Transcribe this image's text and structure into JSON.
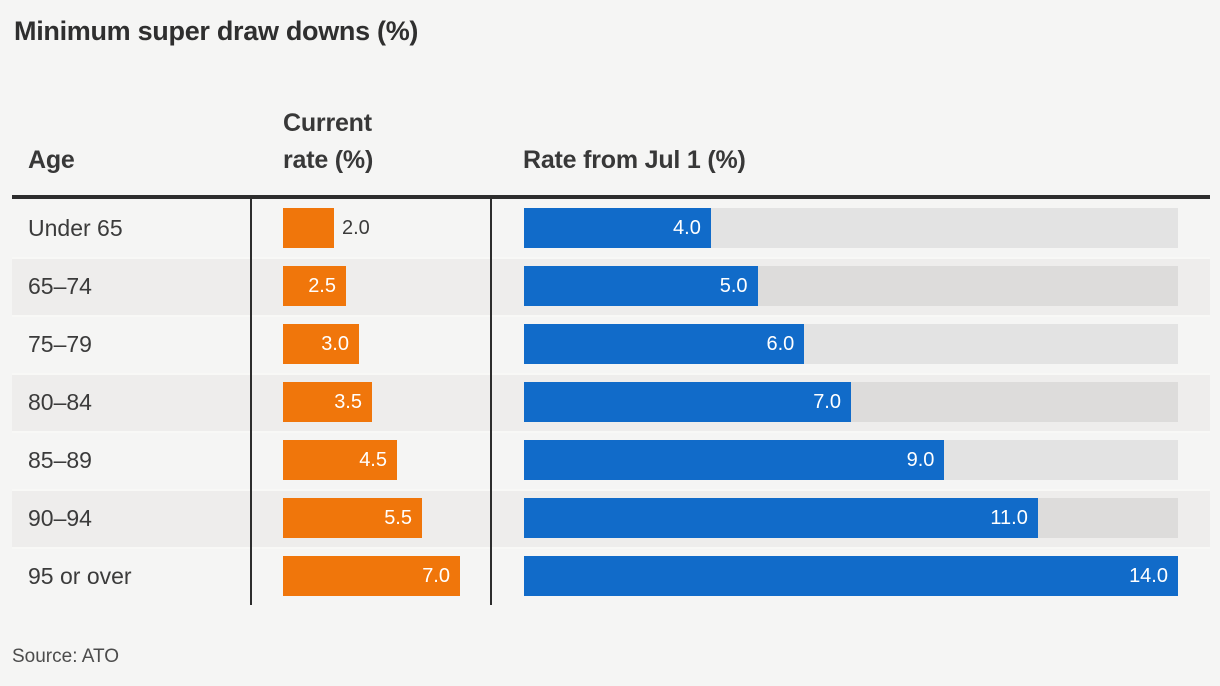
{
  "title": "Minimum super draw downs (%)",
  "columns": {
    "age": "Age",
    "current": "Current\nrate (%)",
    "july": "Rate from Jul 1 (%)"
  },
  "source_note": "Source: ATO",
  "colors": {
    "background": "#f5f5f4",
    "row_alt": "#eeedec",
    "track": "#e2e1e0",
    "current_bar": "#f0760b",
    "july_bar": "#116bc9",
    "rule": "#2d2d2d",
    "text": "#3b3b3b"
  },
  "chart_data": {
    "type": "bar",
    "orientation": "horizontal",
    "title": "Minimum super draw downs (%)",
    "categories": [
      "Under 65",
      "65–74",
      "75–79",
      "80–84",
      "85–89",
      "90–94",
      "95 or over"
    ],
    "series": [
      {
        "name": "Current rate (%)",
        "values": [
          2.0,
          2.5,
          3.0,
          3.5,
          4.5,
          5.5,
          7.0
        ],
        "color": "#f0760b",
        "axis_max": 7.0,
        "track_visible": false
      },
      {
        "name": "Rate from Jul 1 (%)",
        "values": [
          4.0,
          5.0,
          6.0,
          7.0,
          9.0,
          11.0,
          14.0
        ],
        "color": "#116bc9",
        "axis_max": 14.0,
        "track_visible": true
      }
    ],
    "value_labels": "one_decimal_inside_bar_end",
    "xlabel": "",
    "ylabel": "Age",
    "grid": false,
    "legend_position": "column_headers",
    "source": "ATO"
  }
}
